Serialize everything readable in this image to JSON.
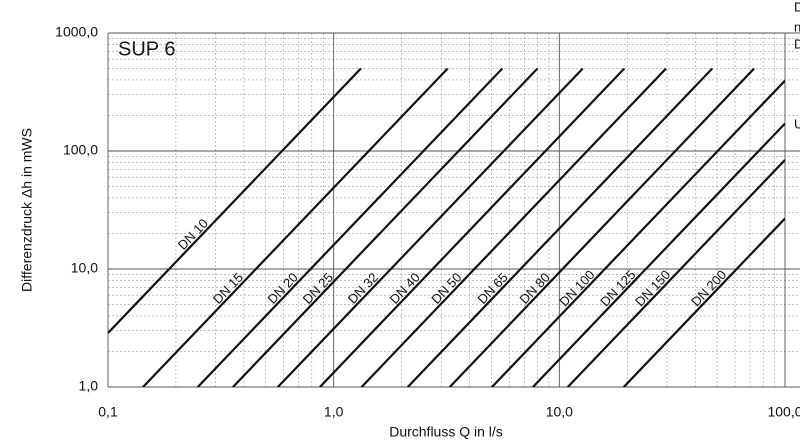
{
  "chart_data": {
    "type": "line",
    "title": "SUP 6",
    "x_label": "Durchfluss Q in l/s",
    "y_label": "Differenzdruck Δh in mWS",
    "log_x": true,
    "log_y": true,
    "grid": true,
    "line_color": "#111111",
    "xlim": [
      0.1,
      100
    ],
    "ylim": [
      1,
      1000
    ],
    "xticks": [
      {
        "value": 0.1,
        "label": "0,1"
      },
      {
        "value": 1,
        "label": "1,0"
      },
      {
        "value": 10,
        "label": "10,0"
      },
      {
        "value": 100,
        "label": "100,0"
      }
    ],
    "yticks": [
      {
        "value": 1,
        "label": "1,0"
      },
      {
        "value": 10,
        "label": "10,0"
      },
      {
        "value": 100,
        "label": "100,0"
      },
      {
        "value": 1000,
        "label": "1000,0"
      }
    ],
    "series": [
      {
        "name": "DN 10",
        "x": [
          0.1,
          1.32
        ],
        "values": [
          2.87,
          500
        ]
      },
      {
        "name": "DN 15",
        "x": [
          0.143,
          3.2
        ],
        "values": [
          1,
          500
        ]
      },
      {
        "name": "DN 20",
        "x": [
          0.25,
          5.59
        ],
        "values": [
          1,
          500
        ]
      },
      {
        "name": "DN 25",
        "x": [
          0.358,
          8.0
        ],
        "values": [
          1,
          500
        ]
      },
      {
        "name": "DN 32",
        "x": [
          0.566,
          12.7
        ],
        "values": [
          1,
          500
        ]
      },
      {
        "name": "DN 40",
        "x": [
          0.869,
          19.4
        ],
        "values": [
          1,
          500
        ]
      },
      {
        "name": "DN 50",
        "x": [
          1.33,
          29.7
        ],
        "values": [
          1,
          500
        ]
      },
      {
        "name": "DN 65",
        "x": [
          2.13,
          47.6
        ],
        "values": [
          1,
          500
        ]
      },
      {
        "name": "DN 80",
        "x": [
          3.27,
          73
        ],
        "values": [
          1,
          500
        ]
      },
      {
        "name": "DN 100",
        "x": [
          5.03,
          100
        ],
        "values": [
          1,
          395
        ]
      },
      {
        "name": "DN 125",
        "x": [
          7.64,
          100
        ],
        "values": [
          1,
          171
        ]
      },
      {
        "name": "DN 150",
        "x": [
          10.9,
          100
        ],
        "values": [
          1,
          84
        ]
      },
      {
        "name": "DN 200",
        "x": [
          19.3,
          100
        ],
        "values": [
          1,
          26.8
        ]
      }
    ],
    "annotations": [
      "D",
      "n",
      "D",
      "U"
    ]
  }
}
